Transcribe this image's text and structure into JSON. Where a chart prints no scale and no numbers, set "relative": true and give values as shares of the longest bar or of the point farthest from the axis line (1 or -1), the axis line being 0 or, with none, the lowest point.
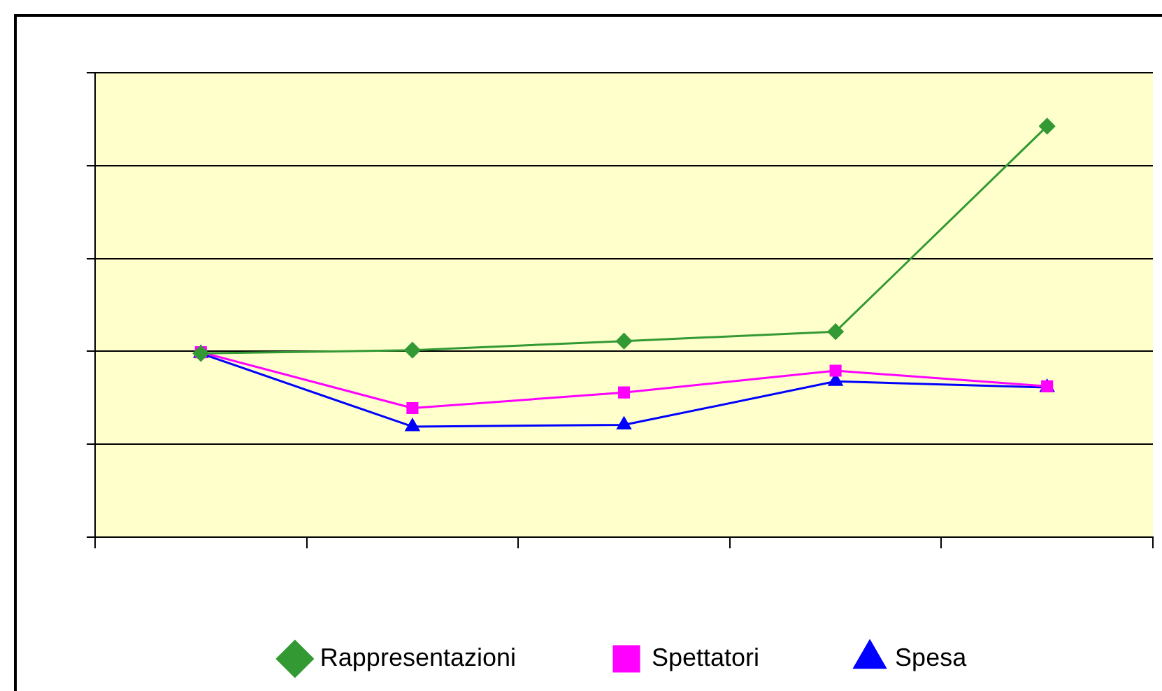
{
  "chart_data": {
    "type": "line",
    "relative": true,
    "categories": [
      null,
      null,
      null,
      null,
      null
    ],
    "grid": "y",
    "legend": "bottom",
    "series": [
      {
        "name": "Rappresentazioni",
        "color": "#339933",
        "marker": "diamond",
        "values": [
          0.447,
          0.455,
          0.477,
          0.5,
          1
        ]
      },
      {
        "name": "Spettatori",
        "color": "#ff00ff",
        "marker": "square",
        "values": [
          0.45,
          0.314,
          0.352,
          0.405,
          0.367
        ]
      },
      {
        "name": "Spesa",
        "color": "#0000ff",
        "marker": "triangle",
        "values": [
          0.447,
          0.269,
          0.273,
          0.379,
          0.364
        ]
      }
    ]
  }
}
